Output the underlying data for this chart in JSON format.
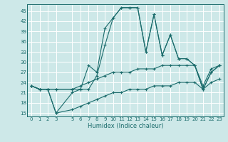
{
  "xlabel": "Humidex (Indice chaleur)",
  "bg_color": "#cde8e8",
  "grid_color": "#ffffff",
  "line_color": "#1a6b6b",
  "xlim": [
    -0.5,
    23.5
  ],
  "ylim": [
    14,
    47
  ],
  "xticks": [
    0,
    1,
    2,
    3,
    5,
    6,
    7,
    8,
    9,
    10,
    11,
    12,
    13,
    14,
    15,
    16,
    17,
    18,
    19,
    20,
    21,
    22,
    23
  ],
  "yticks": [
    15,
    18,
    21,
    24,
    27,
    30,
    33,
    36,
    39,
    42,
    45
  ],
  "series": [
    {
      "x": [
        0,
        1,
        2,
        3,
        5,
        6,
        7,
        8,
        9,
        10,
        11,
        12,
        13,
        14,
        15,
        16,
        17,
        18,
        19,
        20,
        21,
        22,
        23
      ],
      "y": [
        23,
        22,
        22,
        15,
        21,
        22,
        29,
        27,
        40,
        43,
        46,
        46,
        46,
        33,
        44,
        32,
        38,
        31,
        31,
        29,
        22,
        27,
        29
      ]
    },
    {
      "x": [
        0,
        1,
        2,
        3,
        5,
        6,
        7,
        8,
        9,
        10,
        11,
        12,
        13,
        14,
        15,
        16,
        17,
        18,
        19,
        20,
        21,
        22,
        23
      ],
      "y": [
        23,
        22,
        22,
        22,
        22,
        22,
        22,
        26,
        35,
        43,
        46,
        46,
        46,
        33,
        44,
        32,
        38,
        31,
        31,
        29,
        22,
        27,
        29
      ]
    },
    {
      "x": [
        0,
        1,
        2,
        3,
        5,
        6,
        7,
        8,
        9,
        10,
        11,
        12,
        13,
        14,
        15,
        16,
        17,
        18,
        19,
        20,
        21,
        22,
        23
      ],
      "y": [
        23,
        22,
        22,
        22,
        22,
        23,
        24,
        25,
        26,
        27,
        27,
        27,
        28,
        28,
        28,
        29,
        29,
        29,
        29,
        29,
        23,
        28,
        29
      ]
    },
    {
      "x": [
        0,
        1,
        2,
        3,
        5,
        6,
        7,
        8,
        9,
        10,
        11,
        12,
        13,
        14,
        15,
        16,
        17,
        18,
        19,
        20,
        21,
        22,
        23
      ],
      "y": [
        23,
        22,
        22,
        15,
        16,
        17,
        18,
        19,
        20,
        21,
        21,
        22,
        22,
        22,
        23,
        23,
        23,
        24,
        24,
        24,
        22,
        24,
        25
      ]
    }
  ]
}
